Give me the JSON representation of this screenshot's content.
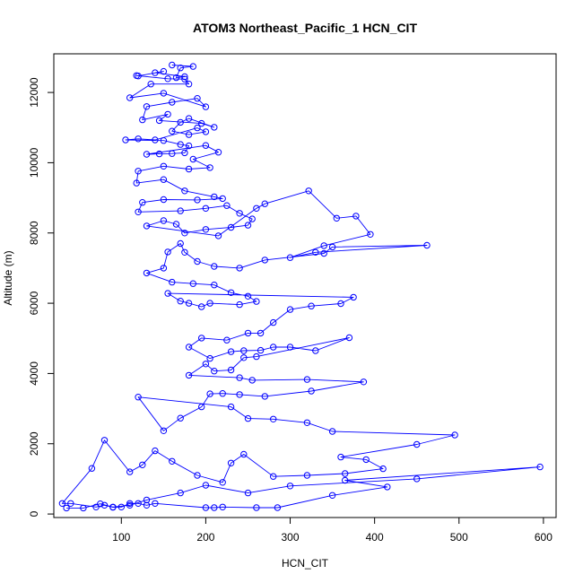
{
  "chart_data": {
    "type": "scatter",
    "title": "ATOM3 Northeast_Pacific_1 HCN_CIT",
    "xlabel": "HCN_CIT",
    "ylabel": "Altitude (m)",
    "xlim": [
      20,
      615
    ],
    "ylim": [
      -100,
      13100
    ],
    "xticks": [
      100,
      200,
      300,
      400,
      500,
      600
    ],
    "yticks": [
      0,
      2000,
      4000,
      6000,
      8000,
      10000,
      12000
    ],
    "grid": false,
    "legend": "none",
    "color": "#0000ff",
    "marker": "open-circle",
    "series": [
      {
        "points": [
          [
            160,
            12780
          ],
          [
            185,
            12740
          ],
          [
            170,
            12700
          ],
          [
            165,
            12420
          ],
          [
            175,
            12450
          ],
          [
            140,
            12560
          ],
          [
            150,
            12600
          ],
          [
            120,
            12470
          ],
          [
            118,
            12480
          ],
          [
            155,
            12390
          ],
          [
            175,
            12380
          ],
          [
            180,
            12240
          ],
          [
            135,
            12240
          ],
          [
            110,
            11850
          ],
          [
            150,
            11980
          ],
          [
            200,
            11590
          ],
          [
            190,
            11830
          ],
          [
            160,
            11720
          ],
          [
            130,
            11600
          ],
          [
            125,
            11220
          ],
          [
            155,
            11380
          ],
          [
            145,
            11200
          ],
          [
            195,
            11120
          ],
          [
            210,
            11010
          ],
          [
            180,
            11260
          ],
          [
            170,
            11150
          ],
          [
            160,
            10900
          ],
          [
            180,
            10800
          ],
          [
            200,
            10880
          ],
          [
            190,
            10990
          ],
          [
            140,
            10650
          ],
          [
            120,
            10680
          ],
          [
            105,
            10650
          ],
          [
            150,
            10630
          ],
          [
            170,
            10520
          ],
          [
            180,
            10480
          ],
          [
            175,
            10280
          ],
          [
            160,
            10260
          ],
          [
            145,
            10250
          ],
          [
            130,
            10240
          ],
          [
            200,
            10490
          ],
          [
            215,
            10300
          ],
          [
            185,
            10100
          ],
          [
            205,
            9860
          ],
          [
            180,
            9820
          ],
          [
            150,
            9900
          ],
          [
            120,
            9760
          ],
          [
            118,
            9420
          ],
          [
            150,
            9520
          ],
          [
            175,
            9200
          ],
          [
            210,
            9030
          ],
          [
            220,
            8980
          ],
          [
            190,
            8940
          ],
          [
            150,
            8950
          ],
          [
            125,
            8870
          ],
          [
            120,
            8600
          ],
          [
            170,
            8630
          ],
          [
            200,
            8700
          ],
          [
            225,
            8780
          ],
          [
            240,
            8560
          ],
          [
            255,
            8400
          ],
          [
            250,
            8220
          ],
          [
            230,
            8160
          ],
          [
            200,
            8100
          ],
          [
            175,
            8000
          ],
          [
            165,
            8250
          ],
          [
            150,
            8350
          ],
          [
            130,
            8200
          ],
          [
            215,
            7920
          ],
          [
            260,
            8700
          ],
          [
            270,
            8830
          ],
          [
            322,
            9200
          ],
          [
            355,
            8420
          ],
          [
            378,
            8480
          ],
          [
            395,
            7960
          ],
          [
            340,
            7640
          ],
          [
            300,
            7300
          ],
          [
            330,
            7450
          ],
          [
            462,
            7650
          ],
          [
            350,
            7600
          ],
          [
            340,
            7420
          ],
          [
            270,
            7230
          ],
          [
            240,
            7000
          ],
          [
            210,
            7050
          ],
          [
            190,
            7190
          ],
          [
            175,
            7450
          ],
          [
            170,
            7700
          ],
          [
            155,
            7460
          ],
          [
            150,
            7000
          ],
          [
            130,
            6860
          ],
          [
            160,
            6600
          ],
          [
            185,
            6560
          ],
          [
            210,
            6520
          ],
          [
            230,
            6300
          ],
          [
            250,
            6200
          ],
          [
            260,
            6050
          ],
          [
            240,
            5960
          ],
          [
            205,
            6000
          ],
          [
            195,
            5900
          ],
          [
            180,
            6000
          ],
          [
            170,
            6060
          ],
          [
            155,
            6280
          ],
          [
            375,
            6170
          ],
          [
            360,
            5990
          ],
          [
            325,
            5920
          ],
          [
            300,
            5820
          ],
          [
            280,
            5450
          ],
          [
            265,
            5150
          ],
          [
            250,
            5150
          ],
          [
            225,
            4950
          ],
          [
            195,
            5010
          ],
          [
            180,
            4750
          ],
          [
            205,
            4430
          ],
          [
            230,
            4620
          ],
          [
            245,
            4650
          ],
          [
            265,
            4660
          ],
          [
            280,
            4750
          ],
          [
            300,
            4750
          ],
          [
            330,
            4650
          ],
          [
            370,
            5020
          ],
          [
            260,
            4480
          ],
          [
            245,
            4450
          ],
          [
            230,
            4100
          ],
          [
            210,
            4070
          ],
          [
            200,
            4270
          ],
          [
            180,
            3950
          ],
          [
            240,
            3880
          ],
          [
            255,
            3810
          ],
          [
            320,
            3830
          ],
          [
            387,
            3760
          ],
          [
            325,
            3500
          ],
          [
            270,
            3350
          ],
          [
            240,
            3400
          ],
          [
            220,
            3430
          ],
          [
            205,
            3420
          ],
          [
            195,
            3050
          ],
          [
            170,
            2730
          ],
          [
            150,
            2370
          ],
          [
            120,
            3330
          ],
          [
            230,
            3050
          ],
          [
            250,
            2720
          ],
          [
            280,
            2700
          ],
          [
            320,
            2600
          ],
          [
            350,
            2350
          ],
          [
            495,
            2250
          ],
          [
            450,
            1980
          ],
          [
            360,
            1620
          ],
          [
            390,
            1550
          ],
          [
            410,
            1290
          ],
          [
            365,
            1150
          ],
          [
            320,
            1100
          ],
          [
            280,
            1070
          ],
          [
            245,
            1700
          ],
          [
            230,
            1450
          ],
          [
            220,
            900
          ],
          [
            190,
            1100
          ],
          [
            160,
            1500
          ],
          [
            140,
            1800
          ],
          [
            125,
            1400
          ],
          [
            110,
            1200
          ],
          [
            80,
            2100
          ],
          [
            65,
            1300
          ],
          [
            30,
            300
          ],
          [
            40,
            300
          ],
          [
            70,
            200
          ],
          [
            80,
            250
          ],
          [
            90,
            190
          ],
          [
            100,
            200
          ],
          [
            110,
            300
          ],
          [
            120,
            300
          ],
          [
            130,
            250
          ],
          [
            140,
            300
          ],
          [
            200,
            180
          ],
          [
            210,
            180
          ],
          [
            220,
            200
          ],
          [
            260,
            180
          ],
          [
            285,
            180
          ],
          [
            350,
            530
          ],
          [
            415,
            770
          ],
          [
            365,
            960
          ],
          [
            596,
            1340
          ],
          [
            450,
            1000
          ],
          [
            300,
            800
          ],
          [
            250,
            600
          ],
          [
            200,
            820
          ],
          [
            170,
            600
          ],
          [
            130,
            400
          ],
          [
            110,
            250
          ],
          [
            90,
            200
          ],
          [
            75,
            290
          ],
          [
            55,
            170
          ],
          [
            35,
            170
          ]
        ]
      }
    ]
  }
}
